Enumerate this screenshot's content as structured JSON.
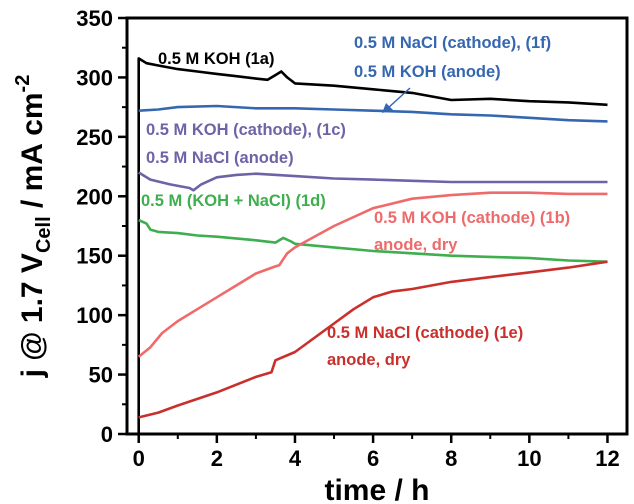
{
  "chart_data": {
    "type": "line",
    "xlabel": "time / h",
    "ylabel": {
      "prefix": "j @ 1.7 V",
      "subscript": "Cell",
      "middle": " / mA cm",
      "superscript": "-2"
    },
    "xlim": [
      -0.3,
      12.5
    ],
    "ylim": [
      0,
      350
    ],
    "xticks": [
      "0",
      "2",
      "4",
      "6",
      "8",
      "10",
      "12"
    ],
    "yticks": [
      "0",
      "50",
      "100",
      "150",
      "200",
      "250",
      "300",
      "350"
    ],
    "grid": false,
    "legend": "none",
    "series": [
      {
        "color": "#000000",
        "points": [
          [
            0,
            0
          ],
          [
            0,
            316
          ],
          [
            0.05,
            315
          ],
          [
            0.2,
            312
          ],
          [
            0.5,
            310
          ],
          [
            1,
            307
          ],
          [
            1.5,
            305
          ],
          [
            2,
            303
          ],
          [
            2.5,
            301
          ],
          [
            3,
            299
          ],
          [
            3.3,
            298
          ],
          [
            3.5,
            302
          ],
          [
            3.65,
            305
          ],
          [
            3.8,
            300
          ],
          [
            4,
            295
          ],
          [
            5,
            293
          ],
          [
            6,
            290
          ],
          [
            7,
            287
          ],
          [
            8,
            281
          ],
          [
            9,
            282
          ],
          [
            10,
            280
          ],
          [
            11,
            279
          ],
          [
            12,
            277
          ]
        ]
      },
      {
        "color": "#3567b0",
        "points": [
          [
            0,
            272
          ],
          [
            0.5,
            273
          ],
          [
            1,
            275
          ],
          [
            2,
            276
          ],
          [
            3,
            274
          ],
          [
            4,
            274
          ],
          [
            5,
            273
          ],
          [
            6,
            272
          ],
          [
            7,
            271
          ],
          [
            8,
            269
          ],
          [
            9,
            268
          ],
          [
            10,
            266
          ],
          [
            11,
            264
          ],
          [
            12,
            263
          ]
        ]
      },
      {
        "color": "#6f63a8",
        "points": [
          [
            0,
            220
          ],
          [
            0.3,
            214
          ],
          [
            0.8,
            210
          ],
          [
            1.3,
            207
          ],
          [
            1.4,
            205
          ],
          [
            1.6,
            210
          ],
          [
            2,
            216
          ],
          [
            2.5,
            218
          ],
          [
            3,
            219
          ],
          [
            4,
            217
          ],
          [
            5,
            215
          ],
          [
            6,
            214
          ],
          [
            7,
            213
          ],
          [
            8,
            212
          ],
          [
            10,
            212
          ],
          [
            12,
            212
          ]
        ]
      },
      {
        "color": "#3fae4f",
        "points": [
          [
            0,
            180
          ],
          [
            0.2,
            177
          ],
          [
            0.3,
            172
          ],
          [
            0.5,
            170
          ],
          [
            1,
            169
          ],
          [
            1.5,
            167
          ],
          [
            2,
            166
          ],
          [
            3,
            163
          ],
          [
            3.5,
            161
          ],
          [
            3.7,
            165
          ],
          [
            3.9,
            162
          ],
          [
            4,
            160
          ],
          [
            5,
            157
          ],
          [
            6,
            154
          ],
          [
            7,
            152
          ],
          [
            8,
            150
          ],
          [
            9,
            149
          ],
          [
            10,
            148
          ],
          [
            11,
            146
          ],
          [
            12,
            145
          ]
        ]
      },
      {
        "color": "#ef6a6a",
        "points": [
          [
            0,
            65
          ],
          [
            0.3,
            73
          ],
          [
            0.6,
            85
          ],
          [
            1,
            95
          ],
          [
            1.5,
            105
          ],
          [
            2,
            115
          ],
          [
            2.5,
            125
          ],
          [
            3,
            135
          ],
          [
            3.5,
            141
          ],
          [
            3.6,
            142
          ],
          [
            3.8,
            152
          ],
          [
            4,
            157
          ],
          [
            5,
            175
          ],
          [
            6,
            190
          ],
          [
            7,
            198
          ],
          [
            8,
            201
          ],
          [
            9,
            203
          ],
          [
            10,
            203
          ],
          [
            11,
            202
          ],
          [
            12,
            202
          ]
        ]
      },
      {
        "color": "#c9302c",
        "points": [
          [
            0,
            14
          ],
          [
            0.5,
            18
          ],
          [
            1,
            24
          ],
          [
            2,
            35
          ],
          [
            3,
            48
          ],
          [
            3.4,
            52
          ],
          [
            3.5,
            62
          ],
          [
            4,
            69
          ],
          [
            5,
            93
          ],
          [
            5.5,
            105
          ],
          [
            6,
            115
          ],
          [
            6.5,
            120
          ],
          [
            7,
            122
          ],
          [
            8,
            128
          ],
          [
            9,
            132
          ],
          [
            10,
            136
          ],
          [
            11,
            140
          ],
          [
            12,
            145
          ]
        ]
      }
    ],
    "annotations": [
      {
        "text": "0.5 M KOH (1a)",
        "color": "#000000"
      },
      {
        "text": "0.5 M NaCl (cathode), (1f)",
        "color": "#3567b0"
      },
      {
        "text": "0.5 M KOH (anode)",
        "color": "#3567b0"
      },
      {
        "text": "0.5 M KOH (cathode), (1c)",
        "color": "#6f63a8"
      },
      {
        "text": "0.5 M NaCl (anode)",
        "color": "#6f63a8"
      },
      {
        "text": "0.5 M (KOH + NaCl) (1d)",
        "color": "#3fae4f"
      },
      {
        "text": "0.5 M KOH (cathode) (1b)",
        "color": "#ef6a6a"
      },
      {
        "text": "anode, dry",
        "color": "#ef6a6a"
      },
      {
        "text": "0.5 M NaCl (cathode) (1e)",
        "color": "#c9302c"
      },
      {
        "text": "anode, dry",
        "color": "#c9302c"
      }
    ]
  }
}
